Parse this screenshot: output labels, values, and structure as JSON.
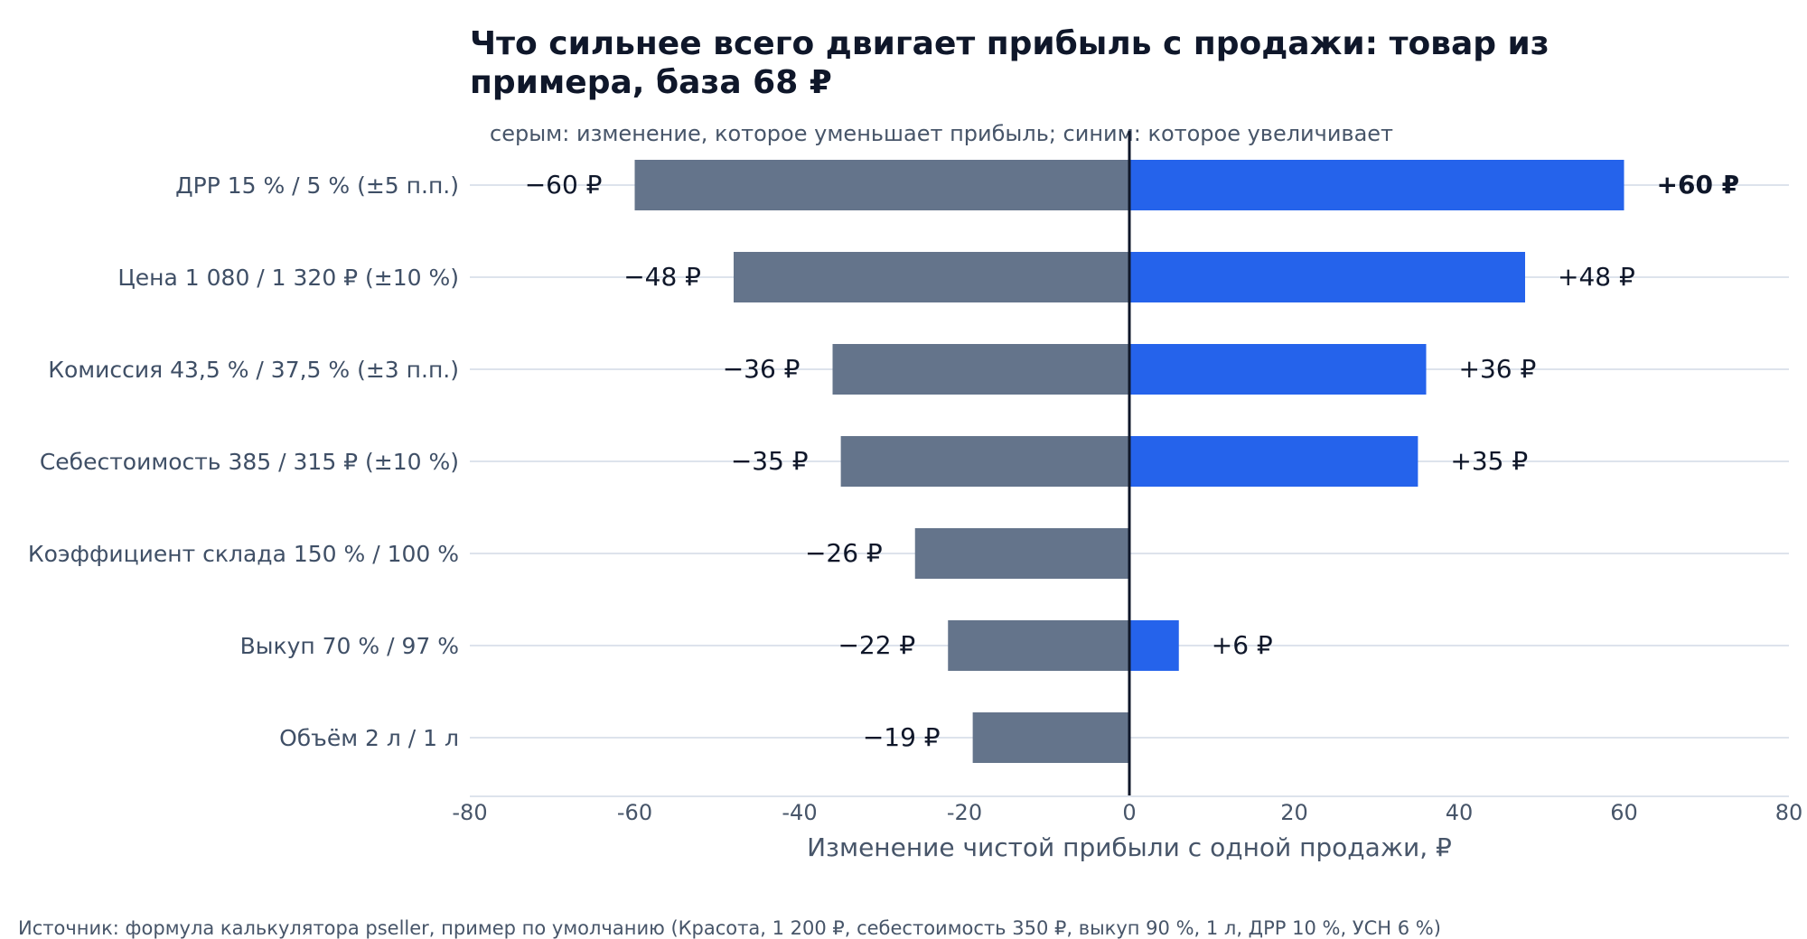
{
  "chart_data": {
    "type": "bar",
    "orientation": "horizontal",
    "chart_kind": "tornado",
    "title": "Что сильнее всего двигает прибыль с продажи: товар из примера, база 68 ₽",
    "title_lines": [
      "Что сильнее всего двигает прибыль с продажи: товар из",
      "примера, база 68 ₽"
    ],
    "subtitle": "серым: изменение, которое уменьшает прибыль; синим: которое увеличивает",
    "xlabel": "Изменение чистой прибыли с одной продажи, ₽",
    "xlim": [
      -80,
      80
    ],
    "xticks": [
      -80,
      -60,
      -40,
      -20,
      0,
      20,
      40,
      60,
      80
    ],
    "grid": "horizontal",
    "categories": [
      "ДРР 15 % / 5 % (±5 п.п.)",
      "Цена 1 080 / 1 320 ₽ (±10 %)",
      "Комиссия 43,5 % / 37,5 % (±3 п.п.)",
      "Себестоимость 385 / 315 ₽ (±10 %)",
      "Коэффициент склада 150 % / 100 %",
      "Выкуп 70 % / 97 %",
      "Объём 2 л / 1 л"
    ],
    "series": [
      {
        "values": [
          -60,
          -48,
          -36,
          -35,
          -26,
          -22,
          -19
        ],
        "labels": [
          "−60 ₽",
          "−48 ₽",
          "−36 ₽",
          "−35 ₽",
          "−26 ₽",
          "−22 ₽",
          "−19 ₽"
        ],
        "color": "#64748b"
      },
      {
        "values": [
          60,
          48,
          36,
          35,
          0,
          6,
          0
        ],
        "labels": [
          "+60 ₽",
          "+48 ₽",
          "+36 ₽",
          "+35 ₽",
          "",
          "+6 ₽",
          ""
        ],
        "color": "#2563eb"
      }
    ],
    "source": "Источник: формула калькулятора pseller, пример по умолчанию (Красота, 1 200 ₽, себестоимость 350 ₽, выкуп 90 %, 1 л, ДРР 10 %, УСН 6 %)"
  },
  "colors": {
    "negative": "#64748b",
    "positive": "#2563eb",
    "zero_line": "#0f172a",
    "grid": "#dde3ec",
    "title": "#0f172a",
    "muted_text": "#475569"
  }
}
